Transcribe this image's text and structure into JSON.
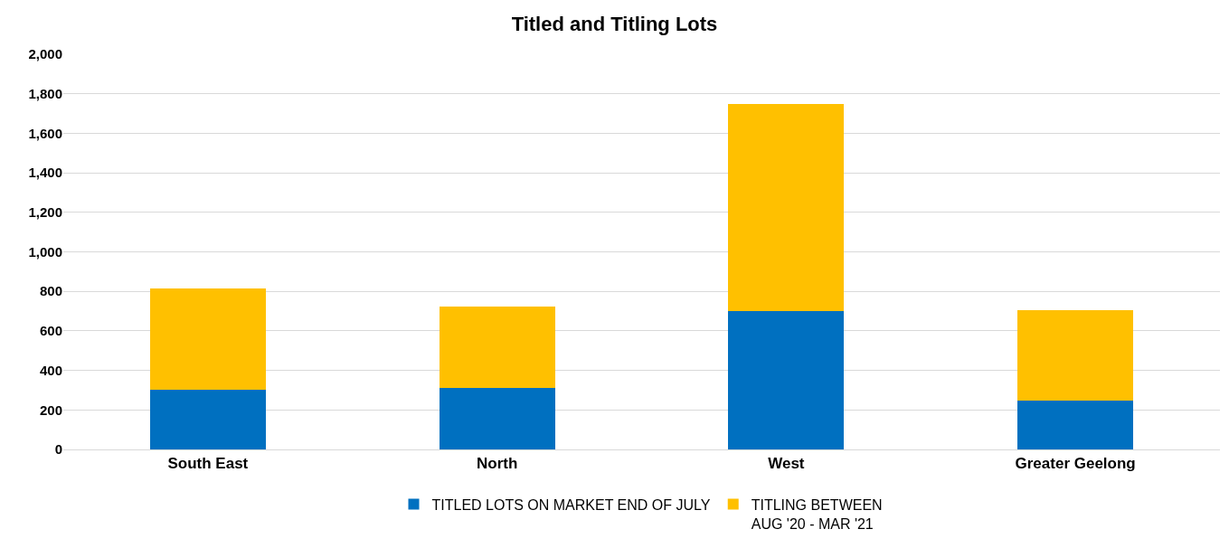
{
  "chart_data": {
    "type": "bar",
    "title": "Titled and Titling Lots",
    "stacked": true,
    "categories": [
      "South East",
      "North",
      "West",
      "Greater Geelong"
    ],
    "series": [
      {
        "name": "TITLED LOTS ON MARKET END OF JULY",
        "color": "#0070c0",
        "values": [
          300,
          310,
          700,
          245
        ]
      },
      {
        "name": "TITLING BETWEEN\nAUG '20 - MAR '21",
        "color": "#ffc000",
        "values": [
          515,
          415,
          1050,
          460
        ]
      }
    ],
    "ylim": [
      0,
      2000
    ],
    "yticks": [
      {
        "value": 0,
        "label": "0"
      },
      {
        "value": 200,
        "label": "200"
      },
      {
        "value": 400,
        "label": "400"
      },
      {
        "value": 600,
        "label": "600"
      },
      {
        "value": 800,
        "label": "800"
      },
      {
        "value": 1000,
        "label": "1,000"
      },
      {
        "value": 1200,
        "label": "1,200"
      },
      {
        "value": 1400,
        "label": "1,400"
      },
      {
        "value": 1600,
        "label": "1,600"
      },
      {
        "value": 1800,
        "label": "1,800"
      },
      {
        "value": 2000,
        "label": "2,000"
      }
    ],
    "grid": "y",
    "legend": "bottom"
  }
}
